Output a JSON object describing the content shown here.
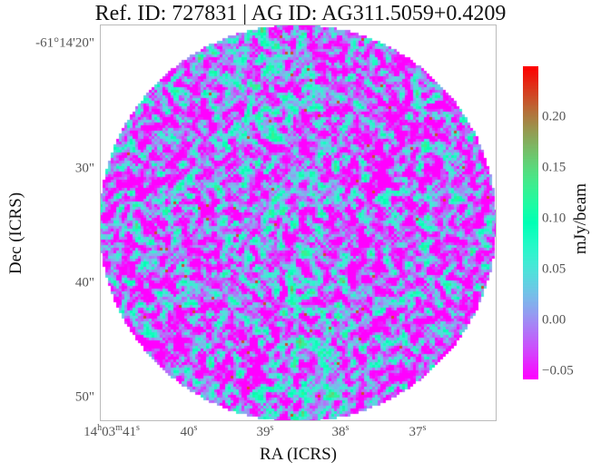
{
  "chart_data": {
    "type": "heatmap",
    "title": "Ref. ID: 727831 | AG ID: AG311.5059+0.4209",
    "xlabel": "RA (ICRS)",
    "ylabel": "Dec (ICRS)",
    "x_ticks": [
      {
        "h": "14",
        "hu": "h",
        "m": "03",
        "mu": "m",
        "s": "41",
        "su": "s"
      },
      {
        "s": "40",
        "su": "s"
      },
      {
        "s": "39",
        "su": "s"
      },
      {
        "s": "38",
        "su": "s"
      },
      {
        "s": "37",
        "su": "s"
      }
    ],
    "y_ticks": [
      "-61°14'20\"",
      "30\"",
      "40\"",
      "50\""
    ],
    "colorbar": {
      "label": "mJy/beam",
      "colormap": "rainbow",
      "range": [
        -0.058,
        0.25
      ],
      "ticks": [
        "0.20",
        "0.15",
        "0.10",
        "0.05",
        "0.00",
        "−0.05"
      ],
      "tick_values": [
        0.2,
        0.15,
        0.1,
        0.05,
        0.0,
        -0.05
      ]
    },
    "footprint": "circular",
    "background": "#ffffff"
  }
}
